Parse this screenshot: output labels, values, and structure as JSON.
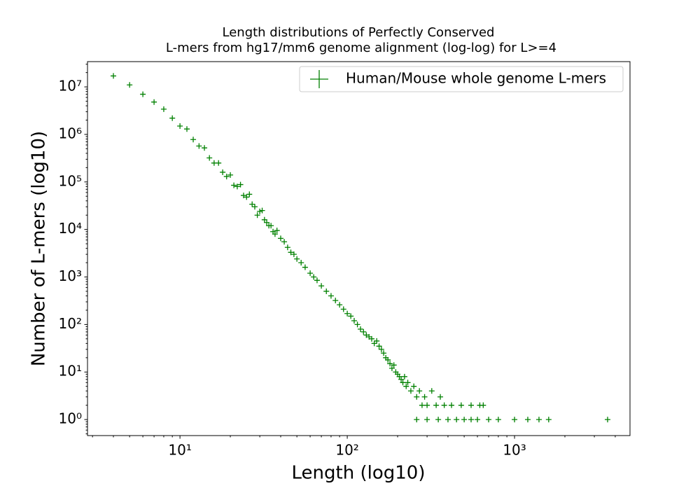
{
  "chart_data": {
    "type": "scatter",
    "title": [
      "Length distributions of Perfectly Conserved",
      "L-mers from hg17/mm6 genome alignment (log-log) for L>=4"
    ],
    "xlabel": "Length (log10)",
    "ylabel": "Number of L-mers (log10)",
    "xscale": "log",
    "yscale": "log",
    "legend": "upper right",
    "marker": "+",
    "xlim": [
      2.8,
      4900
    ],
    "ylim": [
      0.46,
      34000000
    ],
    "xticks": [
      {
        "value": 10,
        "label": "10¹"
      },
      {
        "value": 100,
        "label": "10²"
      },
      {
        "value": 1000,
        "label": "10³"
      }
    ],
    "yticks": [
      {
        "value": 1,
        "label": "10⁰"
      },
      {
        "value": 10,
        "label": "10¹"
      },
      {
        "value": 100,
        "label": "10²"
      },
      {
        "value": 1000,
        "label": "10³"
      },
      {
        "value": 10000,
        "label": "10⁴"
      },
      {
        "value": 100000,
        "label": "10⁵"
      },
      {
        "value": 1000000,
        "label": "10⁶"
      },
      {
        "value": 10000000,
        "label": "10⁷"
      }
    ],
    "x": [
      4,
      5,
      6,
      7,
      8,
      9,
      10,
      11,
      12,
      13,
      14,
      15,
      16,
      17,
      18,
      19,
      20,
      21,
      22,
      23,
      24,
      25,
      26,
      27,
      28,
      29,
      30,
      31,
      32,
      33,
      34,
      35,
      36,
      37,
      38,
      40,
      42,
      44,
      46,
      48,
      50,
      53,
      56,
      60,
      63,
      66,
      70,
      75,
      80,
      85,
      90,
      95,
      100,
      105,
      110,
      115,
      120,
      125,
      130,
      135,
      140,
      145,
      150,
      155,
      160,
      165,
      170,
      175,
      180,
      185,
      190,
      195,
      200,
      205,
      210,
      215,
      220,
      225,
      230,
      240,
      250,
      260,
      270,
      280,
      290,
      300,
      320,
      340,
      360,
      380,
      420,
      480,
      550,
      620,
      650,
      260,
      300,
      350,
      400,
      450,
      500,
      550,
      600,
      700,
      800,
      1000,
      1200,
      1400,
      1600,
      3600
    ],
    "series": [
      {
        "name": "Human/Mouse whole genome L-mers",
        "color": "#008000",
        "values": [
          17000000,
          11000000,
          7000000,
          4800000,
          3400000,
          2200000,
          1500000,
          1300000,
          780000,
          570000,
          520000,
          320000,
          250000,
          250000,
          160000,
          130000,
          140000,
          85000,
          80000,
          88000,
          52000,
          48000,
          55000,
          34000,
          30000,
          20000,
          24000,
          25000,
          16000,
          14000,
          12000,
          12000,
          9000,
          8000,
          9500,
          6500,
          5500,
          4200,
          3300,
          3000,
          2400,
          2000,
          1600,
          1200,
          1000,
          850,
          650,
          500,
          400,
          320,
          260,
          210,
          170,
          150,
          120,
          100,
          80,
          70,
          60,
          55,
          50,
          40,
          45,
          35,
          30,
          25,
          20,
          18,
          15,
          12,
          14,
          10,
          9,
          8,
          7,
          6,
          8,
          5,
          6,
          4,
          5,
          3,
          4,
          2,
          3,
          2,
          4,
          2,
          3,
          2,
          2,
          2,
          2,
          2,
          2,
          1,
          1,
          1,
          1,
          1,
          1,
          1,
          1,
          1,
          1,
          1,
          1,
          1,
          1,
          1
        ]
      }
    ]
  }
}
